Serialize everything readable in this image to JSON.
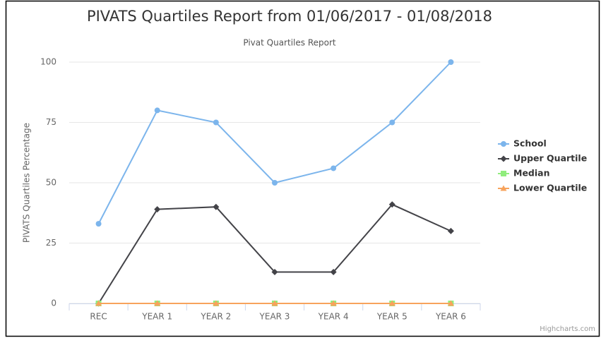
{
  "chart_data": {
    "type": "line",
    "title": "PIVATS Quartiles Report from 01/06/2017 - 01/08/2018",
    "subtitle": "Pivat Quartiles Report",
    "y_axis_label": "PIVATS Quartiles Percentage",
    "credits": "Highcharts.com",
    "categories": [
      "REC",
      "YEAR 1",
      "YEAR 2",
      "YEAR 3",
      "YEAR 4",
      "YEAR 5",
      "YEAR 6"
    ],
    "series": [
      {
        "name": "School",
        "color": "#7cb5ec",
        "marker": "circle",
        "values": [
          33,
          80,
          75,
          50,
          56,
          75,
          100
        ]
      },
      {
        "name": "Upper Quartile",
        "color": "#434348",
        "marker": "diamond",
        "values": [
          0,
          39,
          40,
          13,
          13,
          41,
          30
        ]
      },
      {
        "name": "Median",
        "color": "#90ed7d",
        "marker": "square",
        "values": [
          0,
          0,
          0,
          0,
          0,
          0,
          0
        ]
      },
      {
        "name": "Lower Quartile",
        "color": "#f7a35c",
        "marker": "triangle",
        "values": [
          0,
          0,
          0,
          0,
          0,
          0,
          0
        ]
      }
    ],
    "ylim": [
      0,
      100
    ],
    "yticks": [
      0,
      25,
      50,
      75,
      100
    ],
    "grid": true,
    "legend": "right"
  }
}
